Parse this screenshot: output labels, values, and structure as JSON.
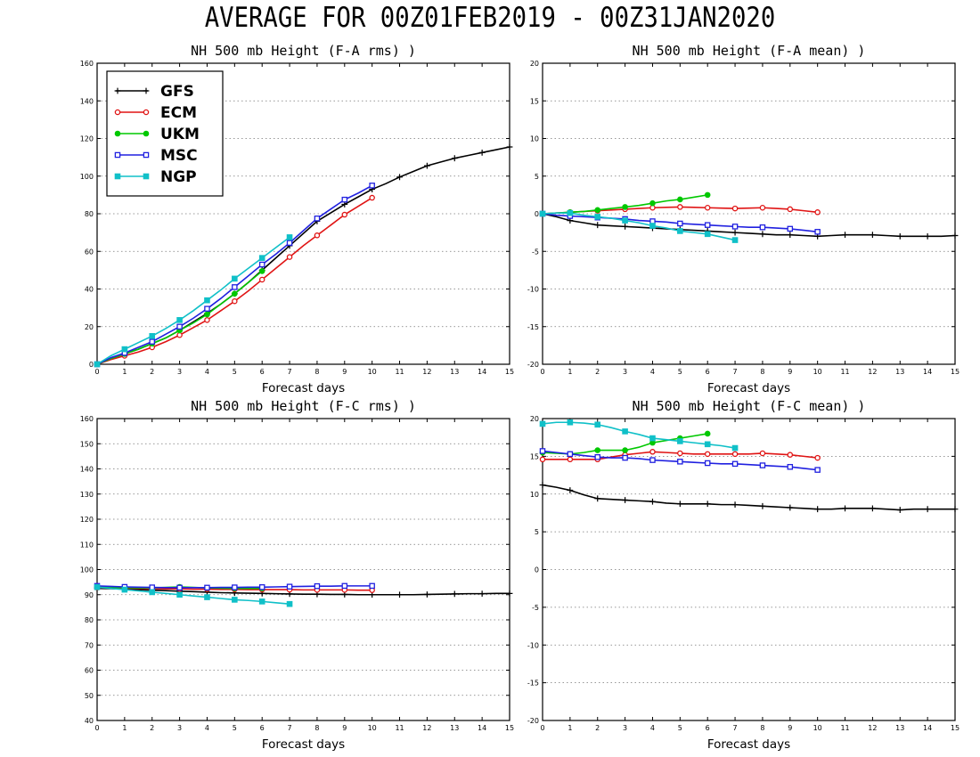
{
  "page_title": "AVERAGE FOR 00Z01FEB2019 - 00Z31JAN2020",
  "colors": {
    "GFS": "#000000",
    "ECM": "#e01414",
    "UKM": "#00c800",
    "MSC": "#2020e0",
    "NGP": "#10c0c8"
  },
  "legend": {
    "entries": [
      {
        "name": "GFS",
        "marker": "plus"
      },
      {
        "name": "ECM",
        "marker": "circle-open"
      },
      {
        "name": "UKM",
        "marker": "circle-filled"
      },
      {
        "name": "MSC",
        "marker": "square-open"
      },
      {
        "name": "NGP",
        "marker": "square-filled"
      }
    ]
  },
  "chart_data": [
    {
      "id": "fa-rms",
      "type": "line",
      "title": "NH 500 mb Height (F-A rms) )",
      "xlabel": "Forecast days",
      "ylabel": "",
      "xlim": [
        0,
        15
      ],
      "ylim": [
        0,
        160
      ],
      "xticks": [
        0,
        1,
        2,
        3,
        4,
        5,
        6,
        7,
        8,
        9,
        10,
        11,
        12,
        13,
        14,
        15
      ],
      "yticks": [
        0,
        20,
        40,
        60,
        80,
        100,
        120,
        140,
        160
      ],
      "grid": "dotted-horizontal",
      "legend": "top-left",
      "series": [
        {
          "name": "GFS",
          "marker": "plus",
          "x": [
            0,
            0.5,
            1,
            1.5,
            2,
            2.5,
            3,
            3.5,
            4,
            4.5,
            5,
            5.5,
            6,
            6.5,
            7,
            7.5,
            8,
            8.5,
            9,
            9.5,
            10,
            10.5,
            11,
            11.5,
            12,
            12.5,
            13,
            13.5,
            14,
            14.5,
            15
          ],
          "values": [
            0,
            3,
            5.5,
            8,
            11,
            14,
            18,
            22.5,
            27,
            32,
            37.5,
            43.5,
            50,
            56.5,
            63,
            69.5,
            76,
            80.5,
            85,
            89,
            93,
            96,
            99.5,
            102.5,
            105.5,
            107.5,
            109.5,
            111,
            112.5,
            114,
            115.5
          ]
        },
        {
          "name": "ECM",
          "marker": "circle-open",
          "x": [
            0,
            0.5,
            1,
            1.5,
            2,
            2.5,
            3,
            3.5,
            4,
            4.5,
            5,
            5.5,
            6,
            6.5,
            7,
            7.5,
            8,
            8.5,
            9,
            9.5,
            10
          ],
          "values": [
            0,
            2.5,
            4.5,
            6.5,
            9,
            12,
            15.5,
            19.5,
            23.5,
            28.5,
            33.5,
            39,
            45,
            51,
            57,
            63,
            68.5,
            74,
            79.5,
            84,
            88.5
          ]
        },
        {
          "name": "UKM",
          "marker": "circle-filled",
          "x": [
            0,
            0.5,
            1,
            1.5,
            2,
            2.5,
            3,
            3.5,
            4,
            4.5,
            5,
            5.5,
            6
          ],
          "values": [
            0,
            3,
            5.5,
            8,
            11,
            14,
            18,
            22,
            26.5,
            32,
            37.5,
            43.5,
            49.5
          ]
        },
        {
          "name": "MSC",
          "marker": "square-open",
          "x": [
            0,
            0.5,
            1,
            1.5,
            2,
            2.5,
            3,
            3.5,
            4,
            4.5,
            5,
            5.5,
            6,
            6.5,
            7,
            7.5,
            8,
            8.5,
            9,
            9.5,
            10
          ],
          "values": [
            0,
            3.5,
            6,
            9,
            12,
            16,
            20,
            24.5,
            29.5,
            35,
            41,
            47,
            53,
            58.5,
            64.5,
            71,
            77.5,
            82.5,
            87.5,
            91,
            95
          ]
        },
        {
          "name": "NGP",
          "marker": "square-filled",
          "x": [
            0,
            0.5,
            1,
            1.5,
            2,
            2.5,
            3,
            3.5,
            4,
            4.5,
            5,
            5.5,
            6,
            6.5,
            7
          ],
          "values": [
            0,
            4.5,
            8,
            11.5,
            15,
            19,
            23.5,
            28.5,
            34,
            39.5,
            45.5,
            51,
            56.5,
            62,
            67.5
          ]
        }
      ]
    },
    {
      "id": "fa-mean",
      "type": "line",
      "title": "NH 500 mb Height (F-A mean) )",
      "xlabel": "Forecast days",
      "ylabel": "",
      "xlim": [
        0,
        15
      ],
      "ylim": [
        -20,
        20
      ],
      "xticks": [
        0,
        1,
        2,
        3,
        4,
        5,
        6,
        7,
        8,
        9,
        10,
        11,
        12,
        13,
        14,
        15
      ],
      "yticks": [
        -20,
        -15,
        -10,
        -5,
        0,
        5,
        10,
        15,
        20
      ],
      "grid": "dotted-horizontal",
      "series": [
        {
          "name": "GFS",
          "marker": "plus",
          "x": [
            0,
            0.5,
            1,
            1.5,
            2,
            2.5,
            3,
            3.5,
            4,
            4.5,
            5,
            5.5,
            6,
            6.5,
            7,
            7.5,
            8,
            8.5,
            9,
            9.5,
            10,
            10.5,
            11,
            11.5,
            12,
            12.5,
            13,
            13.5,
            14,
            14.5,
            15
          ],
          "values": [
            0,
            -0.4,
            -0.9,
            -1.2,
            -1.5,
            -1.6,
            -1.7,
            -1.8,
            -1.9,
            -2.0,
            -2.1,
            -2.2,
            -2.3,
            -2.4,
            -2.5,
            -2.6,
            -2.7,
            -2.8,
            -2.8,
            -2.9,
            -3.0,
            -2.9,
            -2.8,
            -2.8,
            -2.8,
            -2.9,
            -3.0,
            -3.0,
            -3.0,
            -3.0,
            -2.9
          ]
        },
        {
          "name": "ECM",
          "marker": "circle-open",
          "x": [
            0,
            0.5,
            1,
            1.5,
            2,
            2.5,
            3,
            3.5,
            4,
            4.5,
            5,
            5.5,
            6,
            6.5,
            7,
            7.5,
            8,
            8.5,
            9,
            9.5,
            10
          ],
          "values": [
            0,
            0.1,
            0.2,
            0.3,
            0.4,
            0.5,
            0.6,
            0.7,
            0.8,
            0.85,
            0.9,
            0.85,
            0.8,
            0.75,
            0.7,
            0.75,
            0.8,
            0.7,
            0.6,
            0.4,
            0.2
          ]
        },
        {
          "name": "UKM",
          "marker": "circle-filled",
          "x": [
            0,
            0.5,
            1,
            1.5,
            2,
            2.5,
            3,
            3.5,
            4,
            4.5,
            5,
            5.5,
            6
          ],
          "values": [
            0,
            0.1,
            0.2,
            0.3,
            0.5,
            0.7,
            0.9,
            1.1,
            1.4,
            1.7,
            1.9,
            2.2,
            2.5
          ]
        },
        {
          "name": "MSC",
          "marker": "square-open",
          "x": [
            0,
            0.5,
            1,
            1.5,
            2,
            2.5,
            3,
            3.5,
            4,
            4.5,
            5,
            5.5,
            6,
            6.5,
            7,
            7.5,
            8,
            8.5,
            9,
            9.5,
            10
          ],
          "values": [
            0,
            -0.2,
            -0.3,
            -0.4,
            -0.5,
            -0.6,
            -0.7,
            -0.9,
            -1.0,
            -1.1,
            -1.3,
            -1.4,
            -1.5,
            -1.6,
            -1.7,
            -1.8,
            -1.8,
            -1.9,
            -2.0,
            -2.2,
            -2.4
          ]
        },
        {
          "name": "NGP",
          "marker": "square-filled",
          "x": [
            0,
            0.5,
            1,
            1.5,
            2,
            2.5,
            3,
            3.5,
            4,
            4.5,
            5,
            5.5,
            6,
            6.5,
            7
          ],
          "values": [
            0,
            0.1,
            0.1,
            -0.2,
            -0.4,
            -0.6,
            -0.9,
            -1.2,
            -1.6,
            -1.9,
            -2.3,
            -2.5,
            -2.7,
            -3.1,
            -3.5
          ]
        }
      ]
    },
    {
      "id": "fc-rms",
      "type": "line",
      "title": "NH 500 mb Height (F-C rms) )",
      "xlabel": "Forecast days",
      "ylabel": "",
      "xlim": [
        0,
        15
      ],
      "ylim": [
        40,
        160
      ],
      "xticks": [
        0,
        1,
        2,
        3,
        4,
        5,
        6,
        7,
        8,
        9,
        10,
        11,
        12,
        13,
        14,
        15
      ],
      "yticks": [
        40,
        50,
        60,
        70,
        80,
        90,
        100,
        110,
        120,
        130,
        140,
        150,
        160
      ],
      "grid": "dotted-horizontal",
      "series": [
        {
          "name": "GFS",
          "marker": "plus",
          "x": [
            0,
            0.5,
            1,
            1.5,
            2,
            2.5,
            3,
            3.5,
            4,
            4.5,
            5,
            5.5,
            6,
            6.5,
            7,
            7.5,
            8,
            8.5,
            9,
            9.5,
            10,
            10.5,
            11,
            11.5,
            12,
            12.5,
            13,
            13.5,
            14,
            14.5,
            15
          ],
          "values": [
            92.5,
            92.4,
            92.3,
            92.0,
            91.8,
            91.6,
            91.4,
            91.2,
            91.0,
            90.8,
            90.7,
            90.6,
            90.5,
            90.4,
            90.3,
            90.2,
            90.2,
            90.1,
            90.1,
            90.0,
            90.0,
            90.0,
            90.0,
            90.0,
            90.1,
            90.2,
            90.3,
            90.4,
            90.4,
            90.5,
            90.5
          ]
        },
        {
          "name": "ECM",
          "marker": "circle-open",
          "x": [
            0,
            0.5,
            1,
            1.5,
            2,
            2.5,
            3,
            3.5,
            4,
            4.5,
            5,
            5.5,
            6,
            6.5,
            7,
            7.5,
            8,
            8.5,
            9,
            9.5,
            10
          ],
          "values": [
            92.8,
            92.7,
            92.6,
            92.5,
            92.4,
            92.3,
            92.3,
            92.2,
            92.2,
            92.1,
            92.1,
            92.0,
            92.0,
            92.0,
            92.0,
            91.9,
            91.9,
            91.9,
            91.9,
            91.8,
            91.8
          ]
        },
        {
          "name": "UKM",
          "marker": "circle-filled",
          "x": [
            0,
            0.5,
            1,
            1.5,
            2,
            2.5,
            3,
            3.5,
            4,
            4.5,
            5,
            5.5,
            6
          ],
          "values": [
            93.0,
            92.9,
            92.8,
            92.7,
            92.7,
            92.9,
            93.1,
            92.9,
            92.7,
            92.6,
            92.5,
            92.5,
            92.5
          ]
        },
        {
          "name": "MSC",
          "marker": "square-open",
          "x": [
            0,
            0.5,
            1,
            1.5,
            2,
            2.5,
            3,
            3.5,
            4,
            4.5,
            5,
            5.5,
            6,
            6.5,
            7,
            7.5,
            8,
            8.5,
            9,
            9.5,
            10
          ],
          "values": [
            93.5,
            93.3,
            93.1,
            93.0,
            92.9,
            92.8,
            92.8,
            92.8,
            92.8,
            92.9,
            92.9,
            93.0,
            93.0,
            93.1,
            93.2,
            93.3,
            93.4,
            93.4,
            93.5,
            93.5,
            93.5
          ]
        },
        {
          "name": "NGP",
          "marker": "square-filled",
          "x": [
            0,
            0.5,
            1,
            1.5,
            2,
            2.5,
            3,
            3.5,
            4,
            4.5,
            5,
            5.5,
            6,
            6.5,
            7
          ],
          "values": [
            93.0,
            92.5,
            92.0,
            91.5,
            91.0,
            90.5,
            90.0,
            89.5,
            89.0,
            88.5,
            88.0,
            87.7,
            87.3,
            86.8,
            86.3
          ]
        }
      ]
    },
    {
      "id": "fc-mean",
      "type": "line",
      "title": "NH 500 mb Height (F-C mean) )",
      "xlabel": "Forecast days",
      "ylabel": "",
      "xlim": [
        0,
        15
      ],
      "ylim": [
        -20,
        20
      ],
      "xticks": [
        0,
        1,
        2,
        3,
        4,
        5,
        6,
        7,
        8,
        9,
        10,
        11,
        12,
        13,
        14,
        15
      ],
      "yticks": [
        -20,
        -15,
        -10,
        -5,
        0,
        5,
        10,
        15,
        20
      ],
      "grid": "dotted-horizontal",
      "series": [
        {
          "name": "GFS",
          "marker": "plus",
          "x": [
            0,
            0.5,
            1,
            1.5,
            2,
            2.5,
            3,
            3.5,
            4,
            4.5,
            5,
            5.5,
            6,
            6.5,
            7,
            7.5,
            8,
            8.5,
            9,
            9.5,
            10,
            10.5,
            11,
            11.5,
            12,
            12.5,
            13,
            13.5,
            14,
            14.5,
            15
          ],
          "values": [
            11.2,
            10.9,
            10.5,
            9.9,
            9.4,
            9.3,
            9.2,
            9.1,
            9.0,
            8.8,
            8.7,
            8.7,
            8.7,
            8.6,
            8.6,
            8.5,
            8.4,
            8.3,
            8.2,
            8.1,
            8.0,
            8.0,
            8.1,
            8.1,
            8.1,
            8.0,
            7.9,
            8.0,
            8.0,
            8.0,
            8.0
          ]
        },
        {
          "name": "ECM",
          "marker": "circle-open",
          "x": [
            0,
            0.5,
            1,
            1.5,
            2,
            2.5,
            3,
            3.5,
            4,
            4.5,
            5,
            5.5,
            6,
            6.5,
            7,
            7.5,
            8,
            8.5,
            9,
            9.5,
            10
          ],
          "values": [
            14.6,
            14.6,
            14.6,
            14.6,
            14.6,
            14.9,
            15.2,
            15.4,
            15.6,
            15.5,
            15.4,
            15.3,
            15.3,
            15.3,
            15.3,
            15.3,
            15.4,
            15.3,
            15.2,
            15.0,
            14.8
          ]
        },
        {
          "name": "UKM",
          "marker": "circle-filled",
          "x": [
            0,
            0.5,
            1,
            1.5,
            2,
            2.5,
            3,
            3.5,
            4,
            4.5,
            5,
            5.5,
            6
          ],
          "values": [
            15.5,
            15.4,
            15.3,
            15.5,
            15.8,
            15.8,
            15.8,
            16.2,
            16.8,
            17.1,
            17.4,
            17.7,
            18.0
          ]
        },
        {
          "name": "MSC",
          "marker": "square-open",
          "x": [
            0,
            0.5,
            1,
            1.5,
            2,
            2.5,
            3,
            3.5,
            4,
            4.5,
            5,
            5.5,
            6,
            6.5,
            7,
            7.5,
            8,
            8.5,
            9,
            9.5,
            10
          ],
          "values": [
            15.7,
            15.5,
            15.3,
            15.1,
            14.9,
            14.8,
            14.8,
            14.7,
            14.5,
            14.4,
            14.3,
            14.2,
            14.1,
            14.0,
            14.0,
            13.9,
            13.8,
            13.7,
            13.6,
            13.4,
            13.2
          ]
        },
        {
          "name": "NGP",
          "marker": "square-filled",
          "x": [
            0,
            0.5,
            1,
            1.5,
            2,
            2.5,
            3,
            3.5,
            4,
            4.5,
            5,
            5.5,
            6,
            6.5,
            7
          ],
          "values": [
            19.3,
            19.5,
            19.5,
            19.4,
            19.2,
            18.8,
            18.3,
            17.9,
            17.4,
            17.2,
            17.0,
            16.8,
            16.6,
            16.4,
            16.1
          ]
        }
      ]
    }
  ]
}
